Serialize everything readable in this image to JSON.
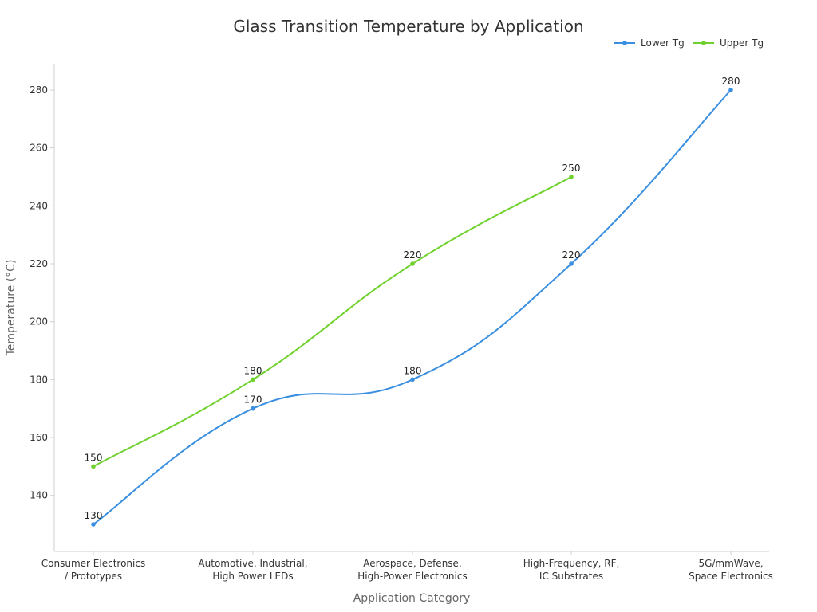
{
  "chart_data": {
    "type": "line",
    "title": "Glass Transition Temperature by Application",
    "xlabel": "Application Category",
    "ylabel": "Temperature (°C)",
    "categories": [
      [
        "Consumer Electronics",
        "/ Prototypes"
      ],
      [
        "Automotive, Industrial,",
        "High Power LEDs"
      ],
      [
        "Aerospace, Defense,",
        "High-Power Electronics"
      ],
      [
        "High-Frequency, RF,",
        "IC Substrates"
      ],
      [
        "5G/mmWave,",
        "Space Electronics"
      ]
    ],
    "yticks": [
      140,
      160,
      180,
      200,
      220,
      240,
      260,
      280
    ],
    "ylim": [
      120,
      290
    ],
    "grid": false,
    "legend_position": "top-right",
    "series": [
      {
        "name": "Lower Tg",
        "color": "#3a8fe0",
        "values": [
          130,
          170,
          180,
          220,
          280
        ]
      },
      {
        "name": "Upper Tg",
        "color": "#6fd12e",
        "values": [
          150,
          180,
          220,
          250,
          null
        ]
      }
    ]
  }
}
